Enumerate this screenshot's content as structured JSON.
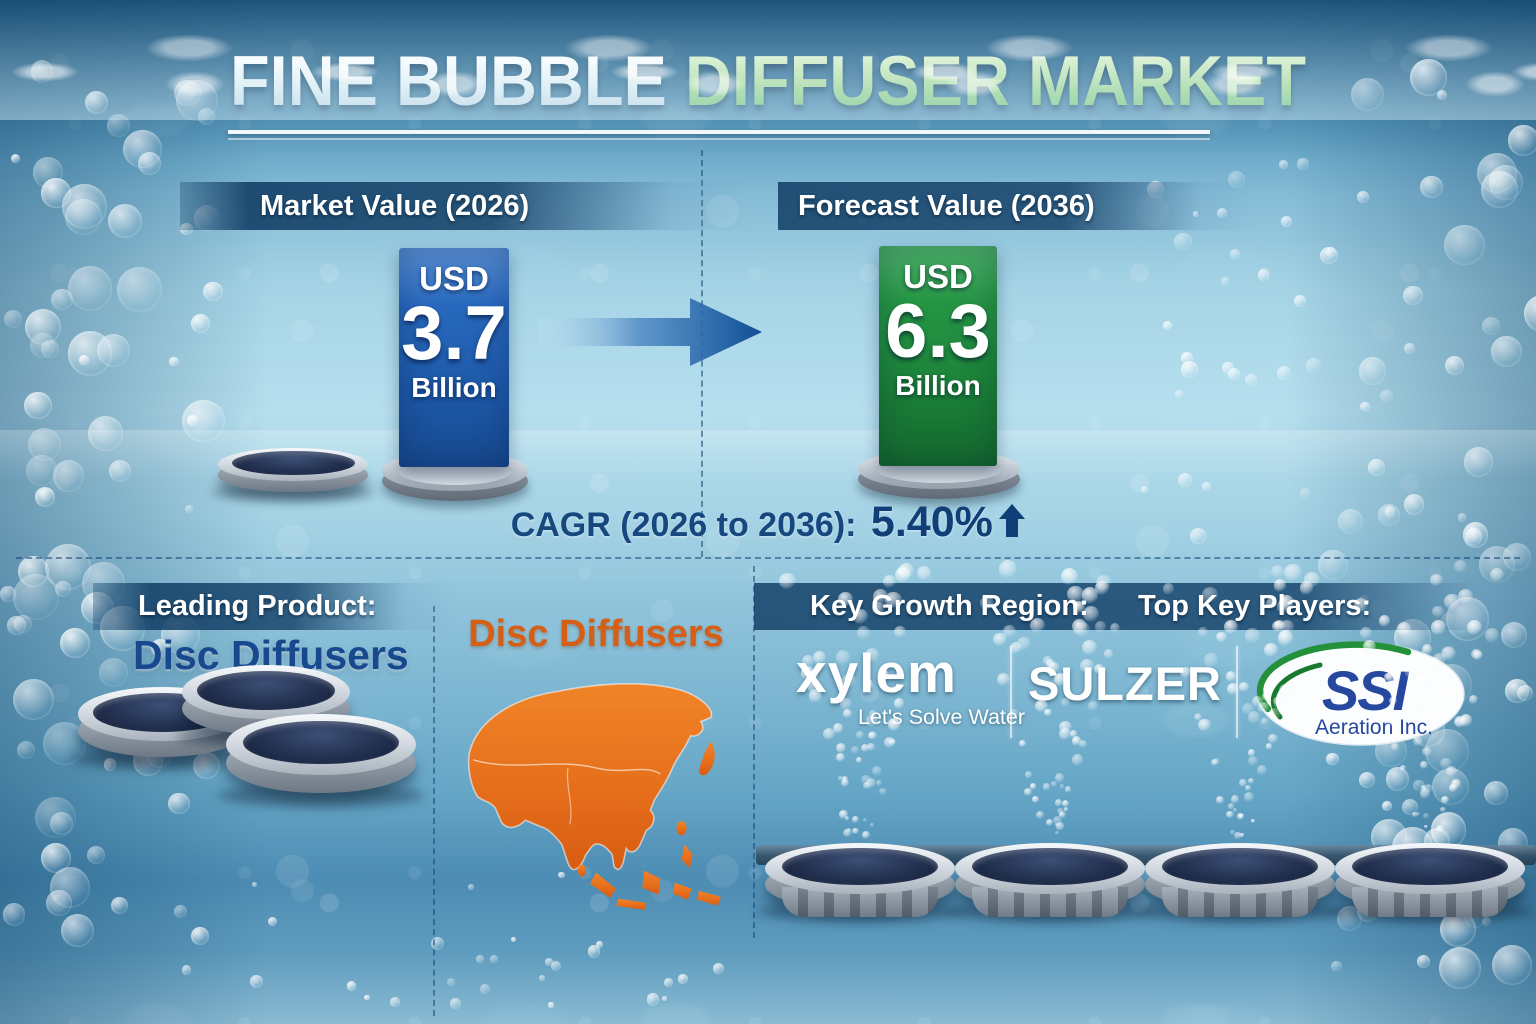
{
  "title": {
    "white_part": "FINE BUBBLE",
    "green_part": " DIFFUSER MARKET"
  },
  "top_section": {
    "market": {
      "header": "Market Value (2026)",
      "currency": "USD",
      "value": "3.7",
      "unit": "Billion"
    },
    "forecast": {
      "header": "Forecast Value (2036)",
      "currency": "USD",
      "value": "6.3",
      "unit": "Billion"
    },
    "cagr": {
      "label": "CAGR (2026 to 2036):",
      "value": "5.40%"
    }
  },
  "bottom_section": {
    "leading_product": {
      "header": "Leading Product:",
      "value": "Disc Diffusers"
    },
    "growth_region": {
      "header": "Key Growth Region:",
      "map_caption": "Disc Diffusers",
      "map_region": "Asia"
    },
    "key_players": {
      "header": "Top Key Players:",
      "logos": [
        {
          "name": "xylem",
          "tagline": "Let's Solve Water"
        },
        {
          "name": "SULZER"
        },
        {
          "name": "SSI",
          "subtext": "Aeration Inc."
        }
      ]
    }
  },
  "colors": {
    "bar_blue": "#1d59a8",
    "bar_green": "#1c8339",
    "accent_orange": "#d55f17",
    "dark_navy_text": "#123f78",
    "band_blue": "#10406a"
  },
  "chart_data": {
    "type": "bar",
    "title": "Fine Bubble Diffuser Market",
    "categories": [
      "Market Value (2026)",
      "Forecast Value (2036)"
    ],
    "values": [
      3.7,
      6.3
    ],
    "unit": "USD Billion",
    "series_colors": [
      "#1d59a8",
      "#1c8339"
    ],
    "annotations": [
      "CAGR (2026 to 2036): 5.40%"
    ],
    "leading_product": "Disc Diffusers",
    "key_growth_region": "Asia",
    "top_key_players": [
      "Xylem",
      "Sulzer",
      "SSI Aeration Inc."
    ]
  }
}
